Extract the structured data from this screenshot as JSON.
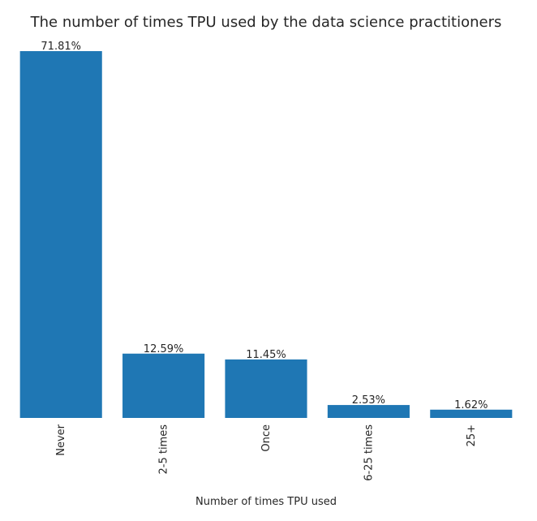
{
  "chart_data": {
    "type": "bar",
    "title": "The number of times TPU used by the data science practitioners",
    "xlabel": "Number of times TPU used",
    "ylabel": "",
    "categories": [
      "Never",
      "2-5 times",
      "Once",
      "6-25 times",
      "25+"
    ],
    "values": [
      71.81,
      12.59,
      11.45,
      2.53,
      1.62
    ],
    "value_labels": [
      "71.81%",
      "12.59%",
      "11.45%",
      "2.53%",
      "1.62%"
    ],
    "ylim": [
      0,
      71.81
    ],
    "grid": false,
    "legend": "none",
    "bar_color": "#1f77b4"
  }
}
